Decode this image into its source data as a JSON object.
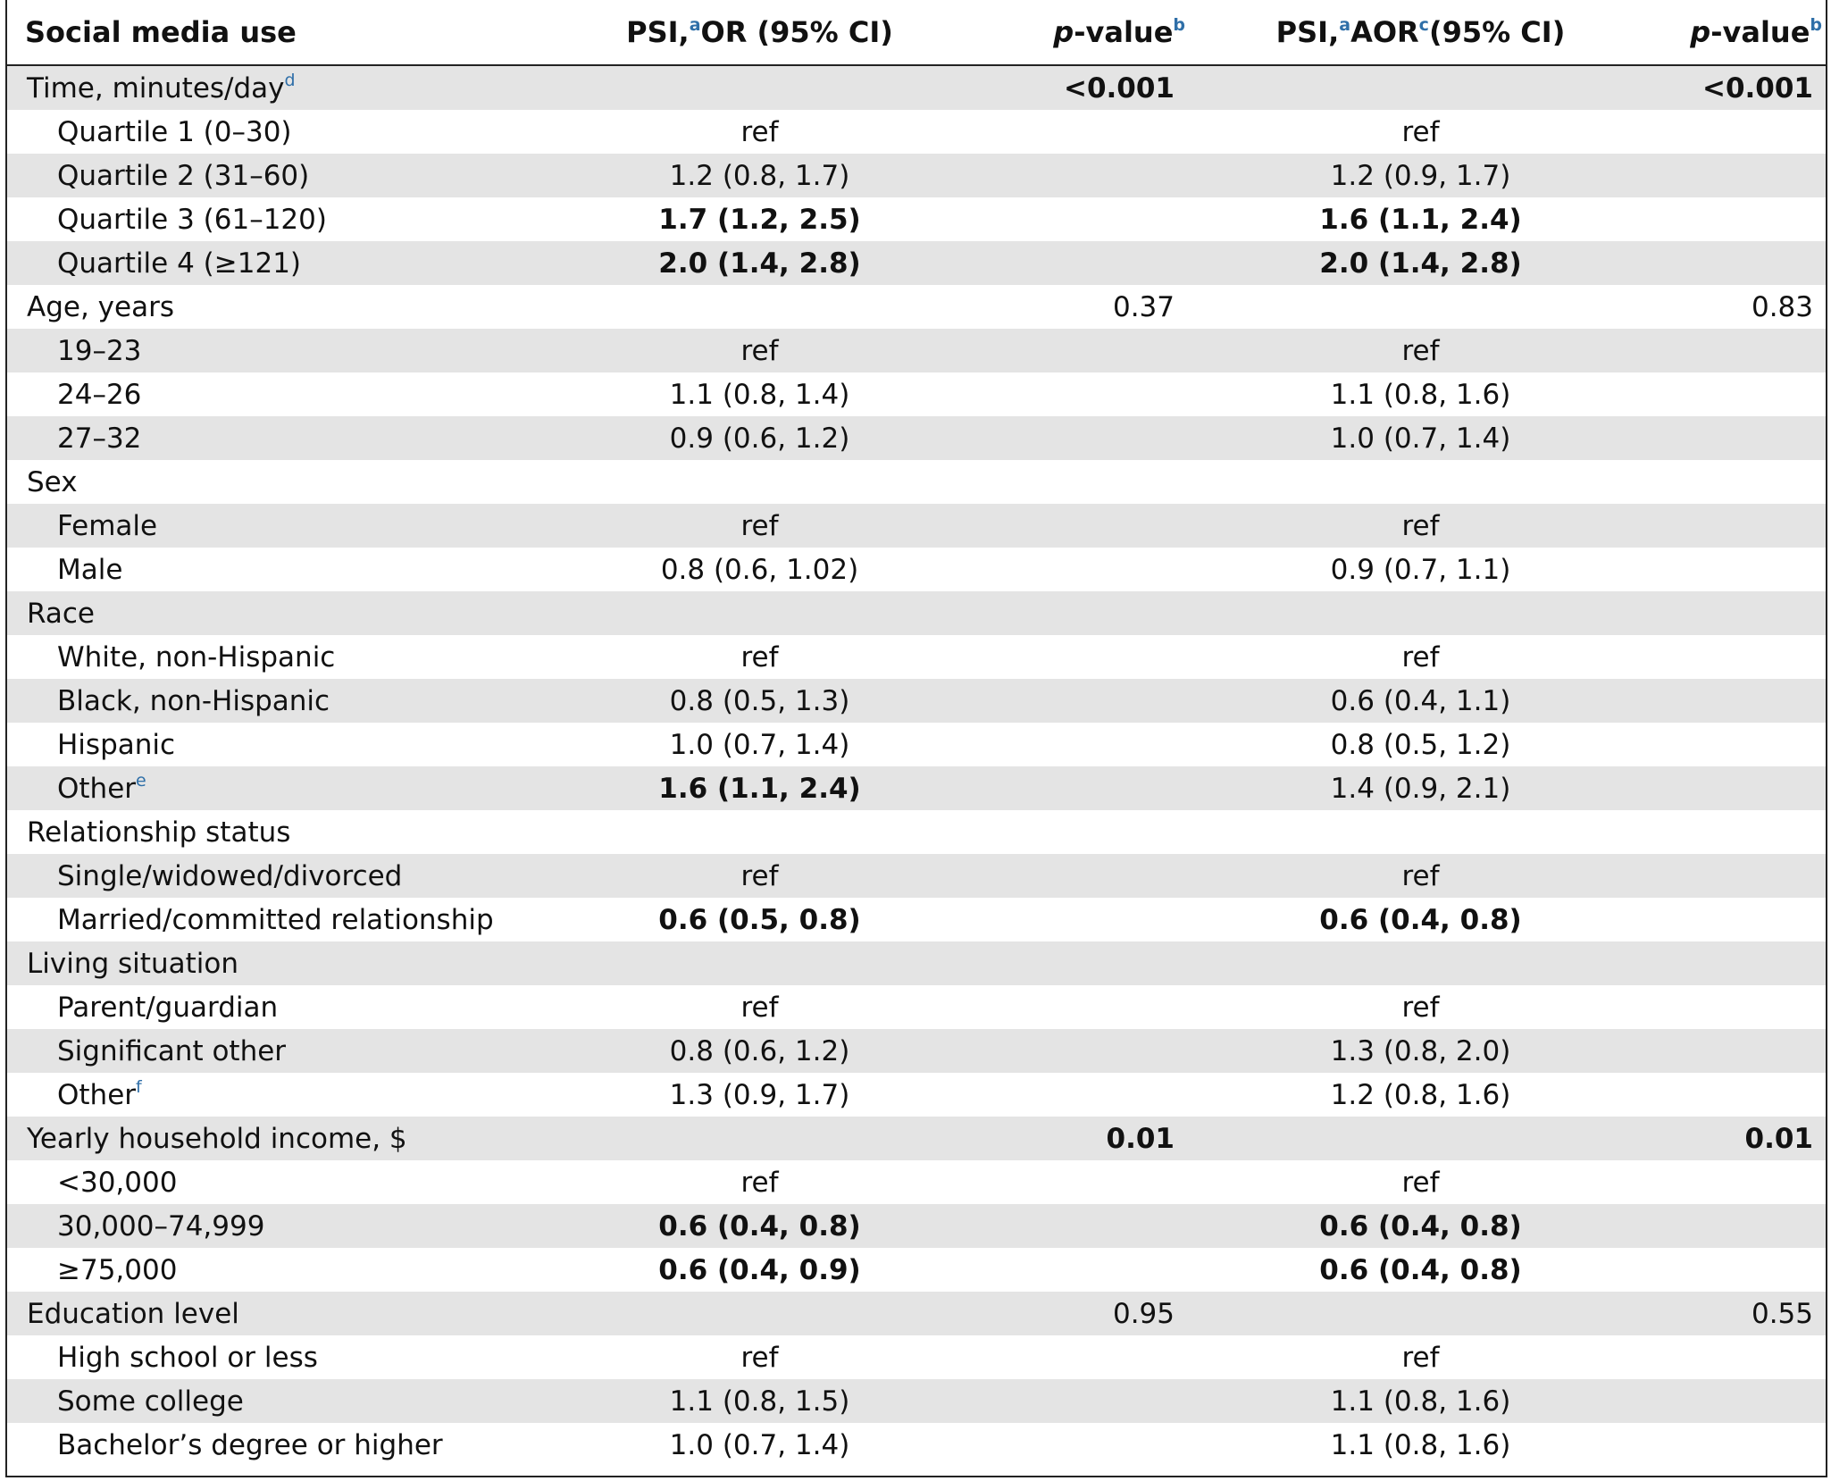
{
  "header": {
    "col0": "Social media use",
    "col1": {
      "prefix": "PSI,",
      "sup": "a",
      "suffix": "OR (95% CI)"
    },
    "col2": {
      "italic": "p",
      "rest": "-value",
      "sup": "b"
    },
    "col3": {
      "prefix": "PSI,",
      "sup": "a",
      "mid": "AOR",
      "sup2": "c",
      "suffix": "(95% CI)"
    },
    "col4": {
      "italic": "p",
      "rest": "-value",
      "sup": "b"
    }
  },
  "rows": [
    {
      "label": "Time, minutes/day",
      "sup": "d",
      "indent": false,
      "or": "",
      "or_bold": false,
      "p1": "<0.001",
      "p1_bold": true,
      "aor": "",
      "aor_bold": false,
      "p2": "<0.001",
      "p2_bold": true
    },
    {
      "label": "Quartile 1 (0–30)",
      "indent": true,
      "or": "ref",
      "aor": "ref"
    },
    {
      "label": "Quartile 2 (31–60)",
      "indent": true,
      "or": "1.2 (0.8, 1.7)",
      "aor": "1.2 (0.9, 1.7)"
    },
    {
      "label": "Quartile 3 (61–120)",
      "indent": true,
      "or": "1.7 (1.2, 2.5)",
      "or_bold": true,
      "aor": "1.6 (1.1, 2.4)",
      "aor_bold": true
    },
    {
      "label": "Quartile 4 (≥121)",
      "indent": true,
      "or": "2.0 (1.4, 2.8)",
      "or_bold": true,
      "aor": "2.0 (1.4, 2.8)",
      "aor_bold": true
    },
    {
      "label": "Age, years",
      "indent": false,
      "p1": "0.37",
      "p2": "0.83"
    },
    {
      "label": "19–23",
      "indent": true,
      "or": "ref",
      "aor": "ref"
    },
    {
      "label": "24–26",
      "indent": true,
      "or": "1.1 (0.8, 1.4)",
      "aor": "1.1 (0.8, 1.6)"
    },
    {
      "label": "27–32",
      "indent": true,
      "or": "0.9 (0.6, 1.2)",
      "aor": "1.0 (0.7, 1.4)"
    },
    {
      "label": "Sex",
      "indent": false
    },
    {
      "label": "Female",
      "indent": true,
      "or": "ref",
      "aor": "ref"
    },
    {
      "label": "Male",
      "indent": true,
      "or": "0.8 (0.6, 1.02)",
      "aor": "0.9 (0.7, 1.1)"
    },
    {
      "label": "Race",
      "indent": false
    },
    {
      "label": "White, non-Hispanic",
      "indent": true,
      "or": "ref",
      "aor": "ref"
    },
    {
      "label": "Black, non-Hispanic",
      "indent": true,
      "or": "0.8 (0.5, 1.3)",
      "aor": "0.6 (0.4, 1.1)"
    },
    {
      "label": "Hispanic",
      "indent": true,
      "or": "1.0 (0.7, 1.4)",
      "aor": "0.8 (0.5, 1.2)"
    },
    {
      "label": "Other",
      "sup": "e",
      "indent": true,
      "or": "1.6 (1.1, 2.4)",
      "or_bold": true,
      "aor": "1.4 (0.9, 2.1)"
    },
    {
      "label": "Relationship status",
      "indent": false
    },
    {
      "label": "Single/widowed/divorced",
      "indent": true,
      "or": "ref",
      "aor": "ref"
    },
    {
      "label": "Married/committed relationship",
      "indent": true,
      "or": "0.6 (0.5, 0.8)",
      "or_bold": true,
      "aor": "0.6 (0.4, 0.8)",
      "aor_bold": true
    },
    {
      "label": "Living situation",
      "indent": false
    },
    {
      "label": "Parent/guardian",
      "indent": true,
      "or": "ref",
      "aor": "ref"
    },
    {
      "label": "Significant other",
      "indent": true,
      "or": "0.8 (0.6, 1.2)",
      "aor": "1.3 (0.8, 2.0)"
    },
    {
      "label": "Other",
      "sup": "f",
      "indent": true,
      "or": "1.3 (0.9, 1.7)",
      "aor": "1.2 (0.8, 1.6)"
    },
    {
      "label": "Yearly household income, $",
      "indent": false,
      "p1": "0.01",
      "p1_bold": true,
      "p2": "0.01",
      "p2_bold": true
    },
    {
      "label": "<30,000",
      "indent": true,
      "or": "ref",
      "aor": "ref"
    },
    {
      "label": "30,000–74,999",
      "indent": true,
      "or": "0.6 (0.4, 0.8)",
      "or_bold": true,
      "aor": "0.6 (0.4, 0.8)",
      "aor_bold": true
    },
    {
      "label": "≥75,000",
      "indent": true,
      "or": "0.6 (0.4, 0.9)",
      "or_bold": true,
      "aor": "0.6 (0.4, 0.8)",
      "aor_bold": true
    },
    {
      "label": "Education level",
      "indent": false,
      "p1": "0.95",
      "p2": "0.55"
    },
    {
      "label": "High school or less",
      "indent": true,
      "or": "ref",
      "aor": "ref"
    },
    {
      "label": "Some college",
      "indent": true,
      "or": "1.1 (0.8, 1.5)",
      "aor": "1.1 (0.8, 1.6)"
    },
    {
      "label": "Bachelor’s degree or higher",
      "indent": true,
      "or": "1.0 (0.7, 1.4)",
      "aor": "1.1 (0.8, 1.6)"
    }
  ]
}
